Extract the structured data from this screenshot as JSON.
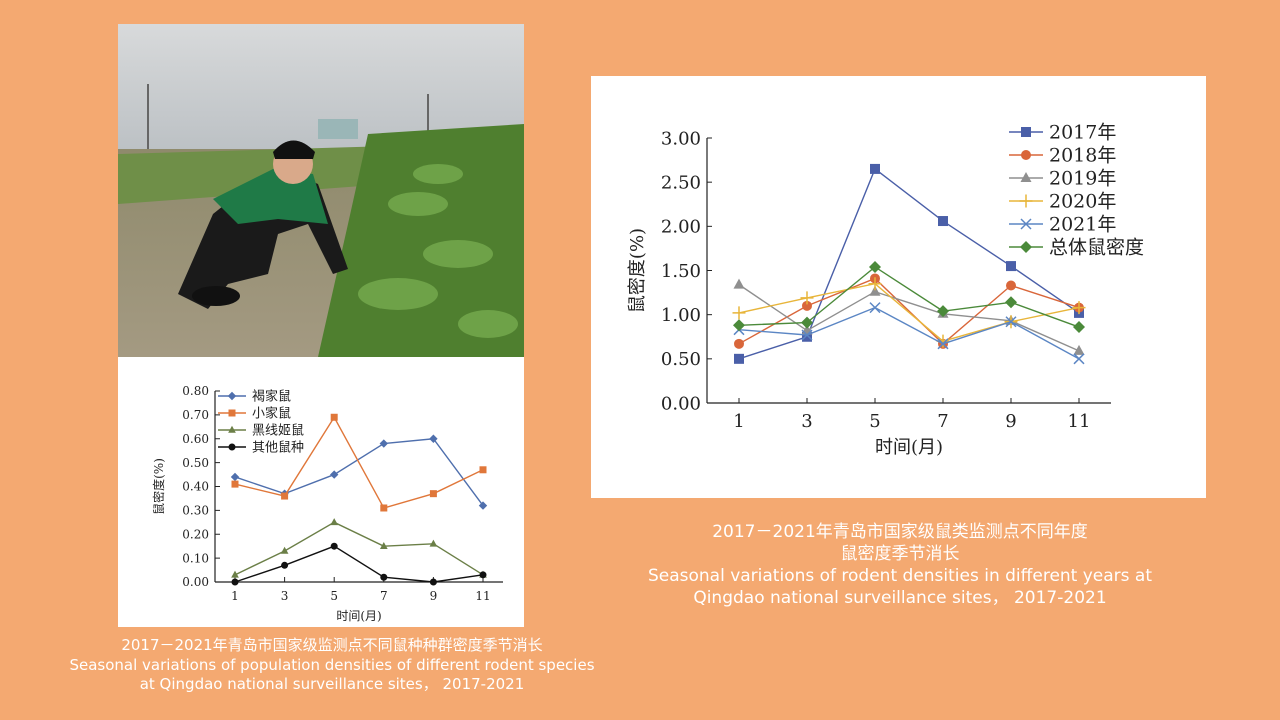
{
  "photo": {
    "subject": "researcher crouching in crop field inspecting plants",
    "icon": "field-photo"
  },
  "caption_left": {
    "zh": "2017－2021年青岛市国家级监测点不同鼠种种群密度季节消长",
    "en1": "Seasonal variations of population densities of different rodent species",
    "en2": "at Qingdao national surveillance sites，  2017-2021"
  },
  "caption_right": {
    "zh1": "2017－2021年青岛市国家级鼠类监测点不同年度",
    "zh2": "鼠密度季节消长",
    "en1": "Seasonal variations of rodent densities in different years at",
    "en2": "Qingdao national surveillance sites，  2017-2021"
  },
  "chart_data": [
    {
      "type": "line",
      "title": "",
      "xlabel": "时间(月)",
      "ylabel": "鼠密度(%)",
      "x": [
        "1",
        "3",
        "5",
        "7",
        "9",
        "11"
      ],
      "ylim": [
        0,
        0.8
      ],
      "yticks": [
        "0.00",
        "0.10",
        "0.20",
        "0.30",
        "0.40",
        "0.50",
        "0.60",
        "0.70",
        "0.80"
      ],
      "legend_position": "top-left",
      "series": [
        {
          "name": "褐家鼠",
          "color": "#4f6fad",
          "marker": "diamond",
          "values": [
            0.44,
            0.37,
            0.45,
            0.58,
            0.6,
            0.32
          ]
        },
        {
          "name": "小家鼠",
          "color": "#e0773a",
          "marker": "square",
          "values": [
            0.41,
            0.36,
            0.69,
            0.31,
            0.37,
            0.47
          ]
        },
        {
          "name": "黑线姬鼠",
          "color": "#6b7f47",
          "marker": "triangle",
          "values": [
            0.03,
            0.13,
            0.25,
            0.15,
            0.16,
            0.03
          ]
        },
        {
          "name": "其他鼠种",
          "color": "#111111",
          "marker": "circle",
          "values": [
            0.0,
            0.07,
            0.15,
            0.02,
            0.0,
            0.03
          ]
        }
      ]
    },
    {
      "type": "line",
      "title": "",
      "xlabel": "时间(月)",
      "ylabel": "鼠密度(%)",
      "x": [
        "1",
        "3",
        "5",
        "7",
        "9",
        "11"
      ],
      "ylim": [
        0,
        3
      ],
      "yticks": [
        "0.00",
        "0.50",
        "1.00",
        "1.50",
        "2.00",
        "2.50",
        "3.00"
      ],
      "legend_position": "top-right",
      "series": [
        {
          "name": "2017年",
          "color": "#4a5fa8",
          "marker": "square",
          "values": [
            0.5,
            0.75,
            2.65,
            2.06,
            1.55,
            1.02
          ]
        },
        {
          "name": "2018年",
          "color": "#d9663a",
          "marker": "circle",
          "values": [
            0.67,
            1.1,
            1.41,
            0.67,
            1.33,
            1.08
          ]
        },
        {
          "name": "2019年",
          "color": "#8f8f8f",
          "marker": "triangle",
          "values": [
            1.34,
            0.82,
            1.26,
            1.01,
            0.93,
            0.59
          ]
        },
        {
          "name": "2020年",
          "color": "#e8b53a",
          "marker": "plus",
          "values": [
            1.02,
            1.19,
            1.35,
            0.7,
            0.92,
            1.08
          ]
        },
        {
          "name": "2021年",
          "color": "#5b86c4",
          "marker": "x",
          "values": [
            0.83,
            0.77,
            1.08,
            0.67,
            0.92,
            0.5
          ]
        },
        {
          "name": "总体鼠密度",
          "color": "#4b8a3a",
          "marker": "diamond",
          "values": [
            0.88,
            0.91,
            1.54,
            1.04,
            1.14,
            0.86
          ]
        }
      ]
    }
  ]
}
